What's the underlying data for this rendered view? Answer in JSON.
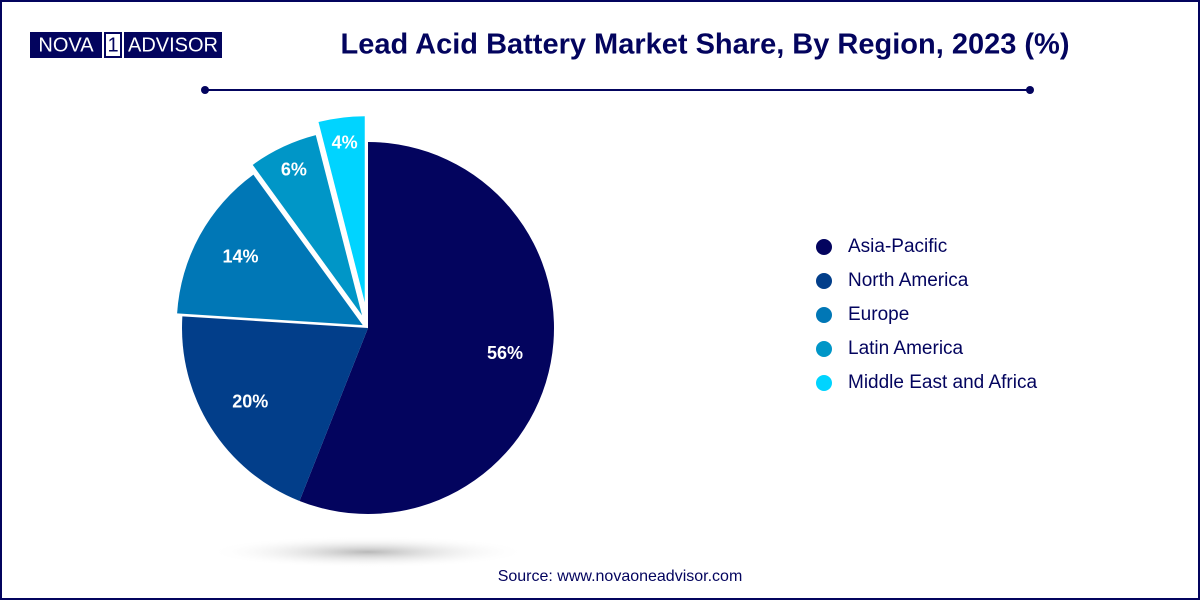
{
  "logo": {
    "left": "NOVA",
    "mark": "1",
    "right": "ADVISOR"
  },
  "chart_data": {
    "type": "pie",
    "title": "Lead Acid Battery Market Share, By Region, 2023 (%)",
    "categories": [
      "Asia-Pacific",
      "North America",
      "Europe",
      "Latin America",
      "Middle East and Africa"
    ],
    "values": [
      56,
      20,
      14,
      6,
      4
    ],
    "value_labels": [
      "56%",
      "20%",
      "14%",
      "6%",
      "4%"
    ],
    "colors": [
      "#03045e",
      "#023e8a",
      "#0077b6",
      "#0096c7",
      "#00d4ff"
    ],
    "legend": "right",
    "source": "Source: www.novaoneadvisor.com"
  }
}
